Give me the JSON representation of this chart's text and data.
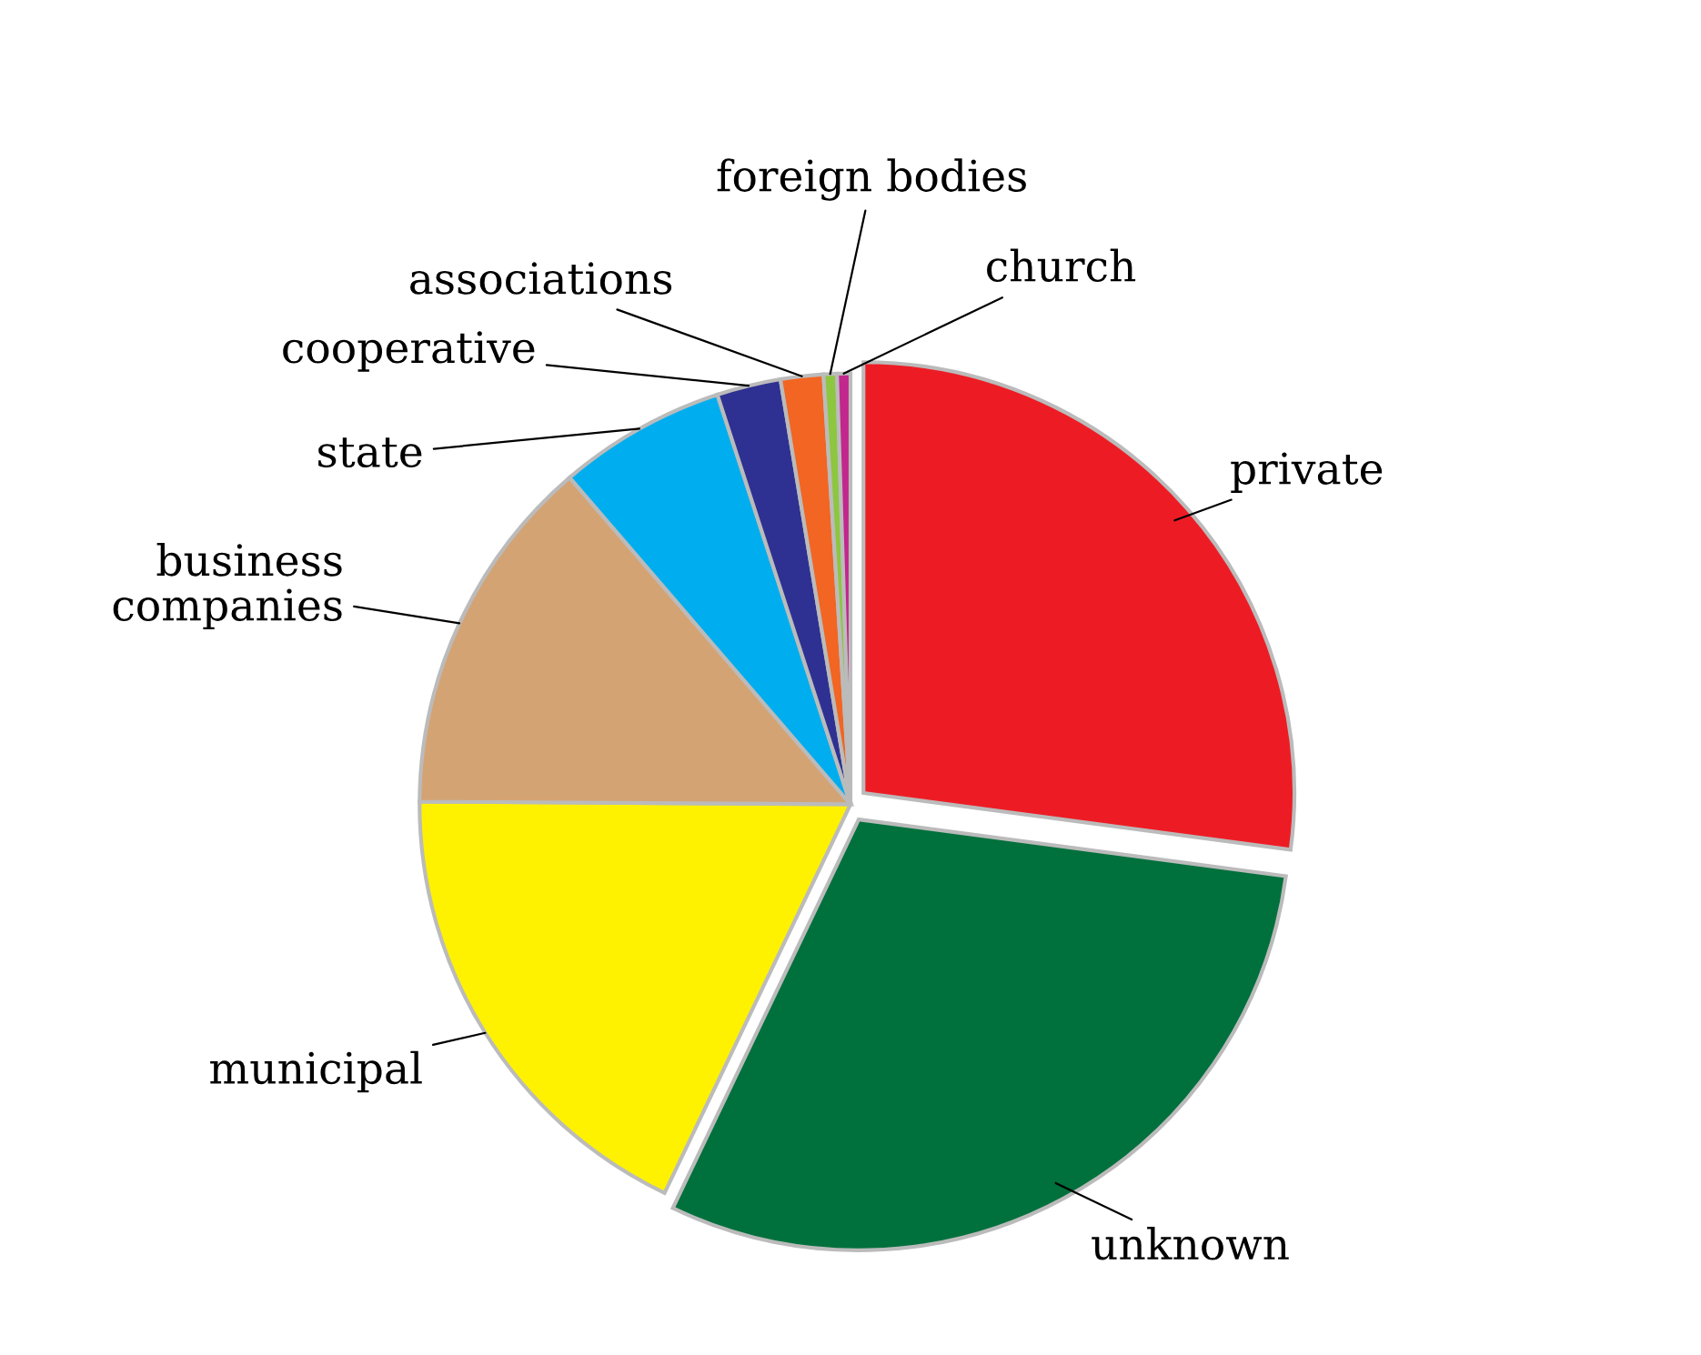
{
  "chart_data": {
    "type": "pie",
    "categories": [
      "private",
      "unknown",
      "municipal",
      "business\ncompanies",
      "state",
      "cooperative",
      "associations",
      "foreign bodies",
      "church"
    ],
    "values": [
      27.1,
      30,
      18,
      13.6,
      6.3,
      2.4,
      1.6,
      0.5,
      0.5
    ],
    "colors": [
      "#ed1c24",
      "#00703c",
      "#fff200",
      "#d4a373",
      "#00aeef",
      "#2e3192",
      "#f26522",
      "#8dc63f",
      "#c2278d"
    ]
  }
}
